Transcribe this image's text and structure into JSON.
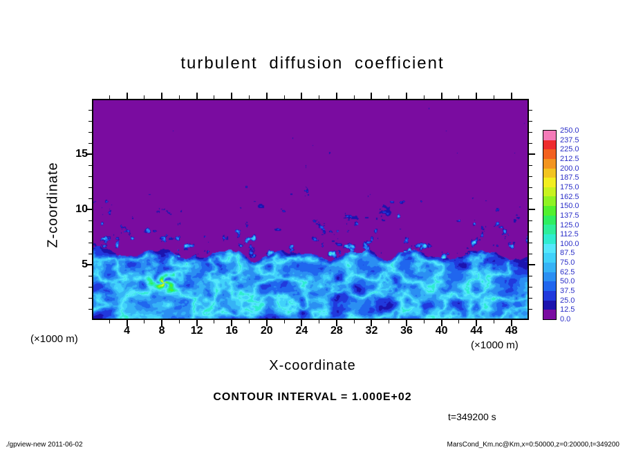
{
  "title": "turbulent diffusion coefficient",
  "axes": {
    "x": {
      "label": "X-coordinate",
      "unit": "(×1000 m)",
      "range": [
        0,
        50
      ],
      "major_ticks": [
        4,
        8,
        12,
        16,
        20,
        24,
        28,
        32,
        36,
        40,
        44,
        48
      ],
      "minor_step": 2
    },
    "y": {
      "label": "Z-coordinate",
      "unit": "(×1000 m)",
      "range": [
        0,
        20
      ],
      "major_ticks": [
        5,
        10,
        15
      ],
      "minor_step": 1
    }
  },
  "colorbar": {
    "levels_top_to_bottom": [
      "250.0",
      "237.5",
      "225.0",
      "212.5",
      "200.0",
      "187.5",
      "175.0",
      "162.5",
      "150.0",
      "137.5",
      "125.0",
      "112.5",
      "100.0",
      "87.5",
      "75.0",
      "62.5",
      "50.0",
      "37.5",
      "25.0",
      "12.5",
      "0.0"
    ],
    "label_color": "#2a2ec8"
  },
  "annotations": {
    "contour_interval": "CONTOUR INTERVAL = 1.000E+02",
    "time": "t=349200 s"
  },
  "footer": {
    "left": "./gpview-new  2011-06-02",
    "right": "MarsCond_Km.nc@Km,x=0:50000,z=0:20000,t=349200"
  },
  "chart_data": {
    "type": "heatmap",
    "variable": "Km (turbulent diffusion coefficient)",
    "x_range_m": [
      0,
      50000
    ],
    "z_range_m": [
      0,
      20000
    ],
    "time_s": 349200,
    "contour_interval": 100.0,
    "value_range": [
      0.0,
      250.0
    ],
    "palette": {
      "level_step": 12.5,
      "colors_low_to_high": [
        "#7a0ca0",
        "#1c13ae",
        "#2139dc",
        "#2066ee",
        "#2b8ff2",
        "#36b3f6",
        "#41d2fa",
        "#55e8fc",
        "#30ecd0",
        "#2eee9a",
        "#2fee60",
        "#52f02e",
        "#8ff222",
        "#c8f21e",
        "#f2ee1e",
        "#f2c41e",
        "#f2941e",
        "#f2611e",
        "#ee2c2c",
        "#f57bb8"
      ]
    },
    "field_structure": {
      "background": "Km ≈ 0 (purple band 0–12.5) over most of the domain above z ≈ 7000 m",
      "mixed_layer": "turbulent convective layer below a wavy boundary at z ≈ 5000–7000 m, Km mostly 25–125 (blue/cyan filaments)",
      "vortex": "strong swirl near x ≈ 8000 m, z ≈ 3500 m with local peaks above 150",
      "detached_patches": "scattered small patches of Km ≈ 25–100 between z ≈ 7000 m and 13000 m, density decreasing with height",
      "upper_region": "near-zero values with rare tiny specks above z ≈ 13500 m"
    }
  }
}
